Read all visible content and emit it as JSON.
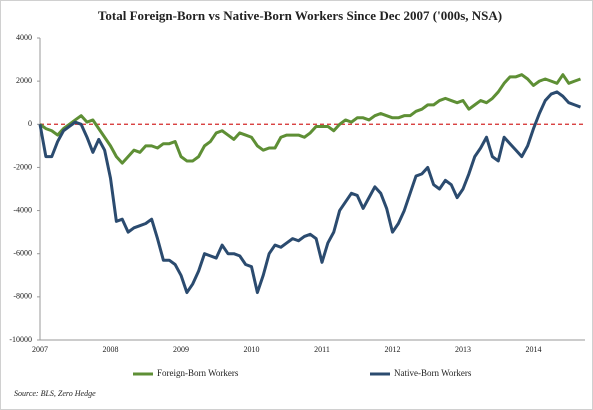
{
  "chart_data": {
    "type": "line",
    "title": "Total Foreign-Born vs Native-Born Workers Since Dec 2007 ('000s, NSA)",
    "source": "Source: BLS, Zero Hedge",
    "categories": [
      "2007",
      null,
      null,
      null,
      null,
      null,
      null,
      null,
      null,
      null,
      null,
      null,
      "2008",
      null,
      null,
      null,
      null,
      null,
      null,
      null,
      null,
      null,
      null,
      null,
      "2009",
      null,
      null,
      null,
      null,
      null,
      null,
      null,
      null,
      null,
      null,
      null,
      "2010",
      null,
      null,
      null,
      null,
      null,
      null,
      null,
      null,
      null,
      null,
      null,
      "2011",
      null,
      null,
      null,
      null,
      null,
      null,
      null,
      null,
      null,
      null,
      null,
      "2012",
      null,
      null,
      null,
      null,
      null,
      null,
      null,
      null,
      null,
      null,
      null,
      "2013",
      null,
      null,
      null,
      null,
      null,
      null,
      null,
      null,
      null,
      null,
      null,
      "2014",
      null,
      null,
      null,
      null,
      null,
      null,
      null,
      null
    ],
    "series": [
      {
        "name": "Foreign-Born Workers",
        "color": "#5e8f35",
        "values": [
          0,
          -200,
          -300,
          -500,
          -200,
          0,
          200,
          400,
          100,
          200,
          -200,
          -600,
          -1000,
          -1500,
          -1800,
          -1500,
          -1200,
          -1300,
          -1000,
          -1000,
          -1100,
          -900,
          -900,
          -800,
          -1500,
          -1700,
          -1700,
          -1500,
          -1000,
          -800,
          -400,
          -300,
          -500,
          -700,
          -400,
          -500,
          -600,
          -1000,
          -1200,
          -1100,
          -1100,
          -600,
          -500,
          -500,
          -500,
          -600,
          -400,
          -100,
          -100,
          -100,
          -300,
          0,
          200,
          100,
          300,
          300,
          200,
          400,
          500,
          400,
          300,
          300,
          400,
          400,
          600,
          700,
          900,
          900,
          1100,
          1200,
          1100,
          1000,
          1100,
          700,
          900,
          1100,
          1000,
          1200,
          1500,
          1900,
          2200,
          2200,
          2300,
          2100,
          1800,
          2000,
          2100,
          2000,
          1900,
          2300,
          1900,
          2000,
          2100
        ]
      },
      {
        "name": "Native-Born Workers",
        "color": "#2b4b6f",
        "values": [
          0,
          -1500,
          -1500,
          -800,
          -300,
          -100,
          100,
          0,
          -600,
          -1300,
          -700,
          -1200,
          -2500,
          -4500,
          -4400,
          -5000,
          -4800,
          -4700,
          -4600,
          -4400,
          -5300,
          -6300,
          -6300,
          -6500,
          -7000,
          -7800,
          -7400,
          -6800,
          -6000,
          -6100,
          -6200,
          -5600,
          -6000,
          -6000,
          -6100,
          -6500,
          -6600,
          -7800,
          -7000,
          -6000,
          -5600,
          -5700,
          -5500,
          -5300,
          -5400,
          -5200,
          -5100,
          -5300,
          -6400,
          -5500,
          -5000,
          -4000,
          -3600,
          -3200,
          -3300,
          -3900,
          -3400,
          -2900,
          -3200,
          -3900,
          -5000,
          -4600,
          -4000,
          -3200,
          -2400,
          -2300,
          -2000,
          -2800,
          -3000,
          -2600,
          -2800,
          -3400,
          -3000,
          -2300,
          -1500,
          -1100,
          -600,
          -1500,
          -1700,
          -600,
          -900,
          -1200,
          -1500,
          -1000,
          -200,
          500,
          1100,
          1400,
          1500,
          1300,
          1000,
          900,
          800
        ]
      }
    ],
    "ylim": [
      -10000,
      4000
    ],
    "yticks": [
      4000,
      2000,
      0,
      -2000,
      -4000,
      -6000,
      -8000,
      -10000
    ],
    "zero_line": true,
    "zero_line_color": "#d42a2a",
    "grid": false
  }
}
